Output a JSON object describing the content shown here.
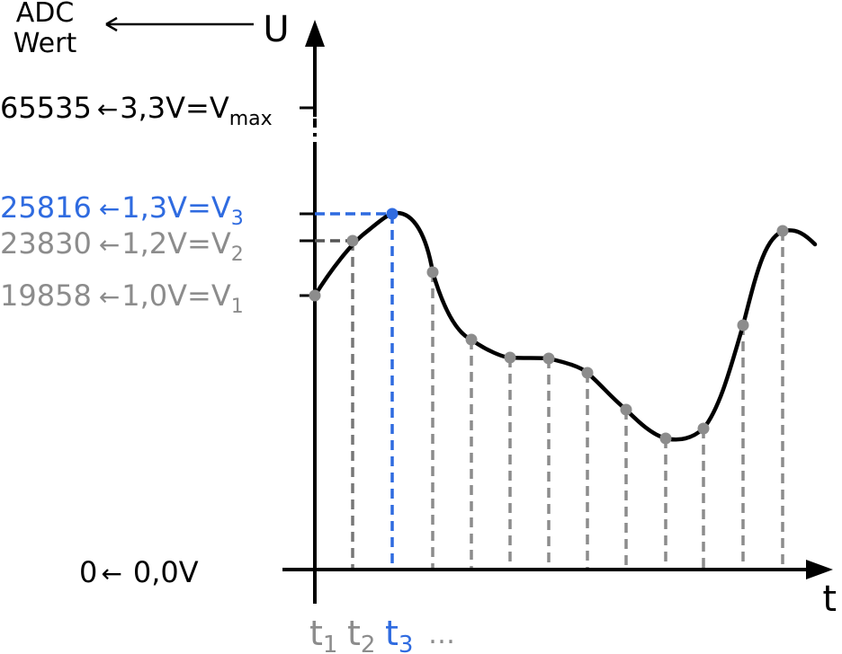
{
  "header": {
    "adc_line1": "ADC",
    "adc_line2": "Wert",
    "y_axis_label": "U",
    "x_axis_label": "t"
  },
  "levels": [
    {
      "adc": "65535",
      "arrow": "←",
      "voltage": "3,3V=V",
      "sub": "max",
      "role": "max"
    },
    {
      "adc": "25816",
      "arrow": "←",
      "voltage": "1,3V=V",
      "sub": "3",
      "role": "v3"
    },
    {
      "adc": "23830",
      "arrow": "←",
      "voltage": "1,2V=V",
      "sub": "2",
      "role": "v2"
    },
    {
      "adc": "19858",
      "arrow": "←",
      "voltage": "1,0V=V",
      "sub": "1",
      "role": "v1"
    },
    {
      "adc": "0",
      "arrow": "←",
      "voltage": "0,0V",
      "sub": "",
      "role": "zero"
    }
  ],
  "time_labels": [
    {
      "base": "t",
      "sub": "1"
    },
    {
      "base": "t",
      "sub": "2"
    },
    {
      "base": "t",
      "sub": "3"
    }
  ],
  "ellipsis": "…",
  "colors": {
    "axis": "#000000",
    "sample": "#8c8c8c",
    "highlight": "#2f6be0",
    "curve": "#000000"
  }
}
